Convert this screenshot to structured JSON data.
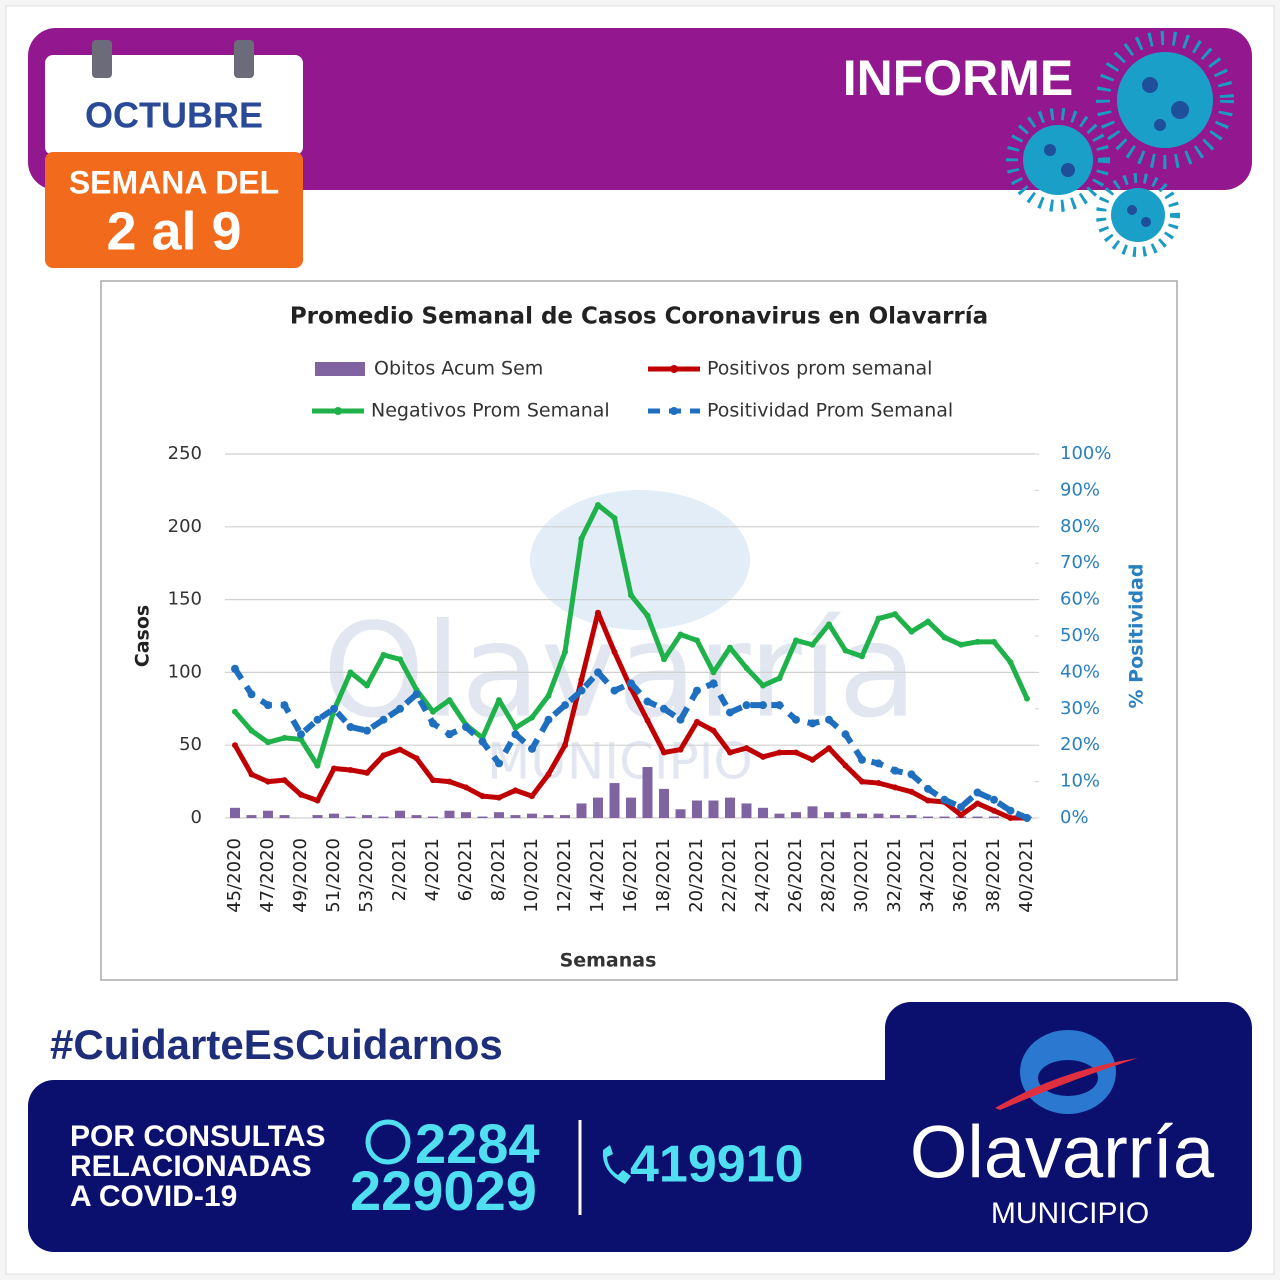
{
  "header": {
    "calendar_month": "OCTUBRE",
    "week_label": "SEMANA DEL",
    "week_range": "2 al 9",
    "title": "INFORME"
  },
  "chart_data": {
    "type": "line",
    "title": "Promedio Semanal de Casos Coronavirus en Olavarría",
    "x_label": "Semanas",
    "y_label": "Casos",
    "y2_label": "% Positividad",
    "categories": [
      "45/2020",
      null,
      "47/2020",
      null,
      "49/2020",
      null,
      "51/2020",
      null,
      "53/2020",
      null,
      "2/2021",
      null,
      "4/2021",
      null,
      "6/2021",
      null,
      "8/2021",
      null,
      "10/2021",
      null,
      "12/2021",
      null,
      "14/2021",
      null,
      "16/2021",
      null,
      "18/2021",
      null,
      "20/2021",
      null,
      "22/2021",
      null,
      "24/2021",
      null,
      "26/2021",
      null,
      "28/2021",
      null,
      "30/2021",
      null,
      "32/2021",
      null,
      "34/2021",
      null,
      "36/2021",
      null,
      "38/2021",
      null,
      "40/2021"
    ],
    "series": [
      {
        "name": "Obitos Acum Sem",
        "type": "bar",
        "color": "#8064a2",
        "values": [
          7,
          2,
          5,
          2,
          0,
          2,
          3,
          1,
          2,
          1,
          5,
          2,
          1,
          5,
          4,
          1,
          4,
          2,
          3,
          2,
          2,
          10,
          14,
          24,
          14,
          35,
          20,
          6,
          12,
          12,
          14,
          10,
          7,
          3,
          4,
          8,
          4,
          4,
          3,
          3,
          2,
          2,
          1,
          1,
          1,
          1,
          1,
          1,
          1
        ]
      },
      {
        "name": "Positivos prom semanal",
        "type": "line",
        "color": "#c00000",
        "values": [
          50,
          30,
          25,
          26,
          16,
          12,
          34,
          33,
          31,
          43,
          47,
          41,
          26,
          25,
          21,
          15,
          14,
          19,
          15,
          30,
          50,
          95,
          141,
          114,
          89,
          67,
          45,
          47,
          66,
          60,
          45,
          48,
          42,
          45,
          45,
          40,
          48,
          36,
          25,
          24,
          21,
          18,
          12,
          11,
          2,
          10,
          5,
          0,
          0
        ]
      },
      {
        "name": "Negativos Prom Semanal",
        "type": "line",
        "color": "#1fb24a",
        "values": [
          73,
          60,
          52,
          55,
          54,
          36,
          74,
          100,
          91,
          112,
          109,
          88,
          73,
          81,
          64,
          55,
          81,
          62,
          69,
          84,
          114,
          192,
          215,
          206,
          153,
          139,
          109,
          126,
          122,
          100,
          117,
          103,
          91,
          96,
          122,
          119,
          133,
          115,
          111,
          137,
          140,
          128,
          135,
          124,
          119,
          121,
          121,
          107,
          82
        ]
      },
      {
        "name": "Positividad Prom Semanal",
        "type": "line",
        "axis": "y2",
        "dashed": true,
        "color": "#1f6fc0",
        "values": [
          41,
          34,
          31,
          31,
          23,
          27,
          30,
          25,
          24,
          27,
          30,
          34,
          26,
          23,
          25,
          21,
          15,
          23,
          19,
          27,
          31,
          35,
          40,
          35,
          37,
          32,
          30,
          27,
          35,
          37,
          29,
          31,
          31,
          31,
          27,
          26,
          27,
          23,
          16,
          15,
          13,
          12,
          8,
          5,
          3,
          7,
          5,
          2,
          0
        ]
      }
    ],
    "ylim": [
      0,
      250
    ],
    "yticks": [
      0,
      50,
      100,
      150,
      200,
      250
    ],
    "y2lim": [
      0,
      100
    ],
    "y2ticks": [
      {
        "value": 0,
        "label": "0%"
      },
      {
        "value": 10,
        "label": "10%"
      },
      {
        "value": 20,
        "label": "20%"
      },
      {
        "value": 30,
        "label": "30%"
      },
      {
        "value": 40,
        "label": "40%"
      },
      {
        "value": 50,
        "label": "50%"
      },
      {
        "value": 60,
        "label": "60%"
      },
      {
        "value": 70,
        "label": "70%"
      },
      {
        "value": 80,
        "label": "80%"
      },
      {
        "value": 90,
        "label": "90%"
      },
      {
        "value": 100,
        "label": "100%"
      }
    ],
    "grid": true
  },
  "footer": {
    "hashtag": "#CuidarteEsCuidarnos",
    "contact_lines": [
      "POR CONSULTAS",
      "RELACIONADAS",
      "A COVID-19"
    ],
    "whatsapp_lines": [
      "2284",
      "229029"
    ],
    "phone": "419910",
    "logo_name": "Olavarría",
    "logo_sub": "MUNICIPIO"
  }
}
